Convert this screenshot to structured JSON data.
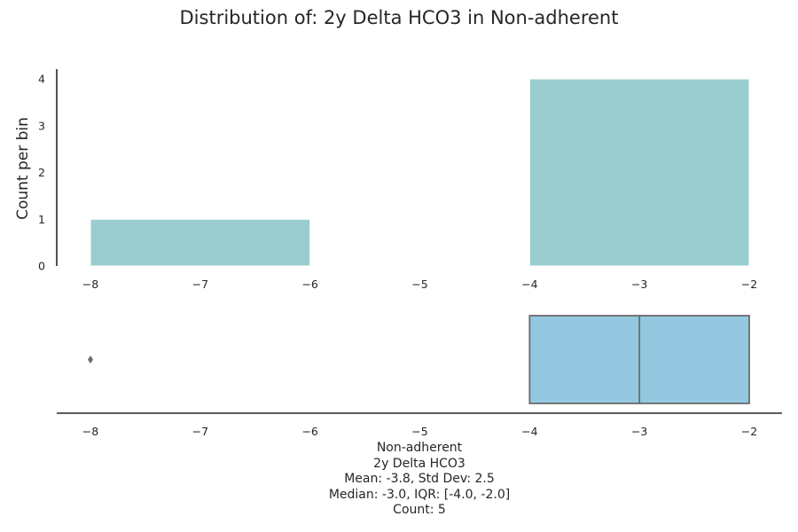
{
  "chart_data": [
    {
      "type": "bar",
      "subtype": "histogram",
      "title": "Distribution of: 2y Delta HCO3 in Non-adherent",
      "ylabel": "Count per bin",
      "bins": [
        {
          "x0": -8,
          "x1": -6,
          "count": 1
        },
        {
          "x0": -6,
          "x1": -4,
          "count": 0
        },
        {
          "x0": -4,
          "x1": -2,
          "count": 4
        }
      ],
      "xlim": [
        -8.3,
        -2
      ],
      "ylim": [
        0,
        4.2
      ],
      "xticks": [
        -8,
        -7,
        -6,
        -5,
        -4,
        -3,
        -2
      ],
      "xtick_labels": [
        "−8",
        "−7",
        "−6",
        "−5",
        "−4",
        "−3",
        "−2"
      ],
      "yticks": [
        0,
        1,
        2,
        3,
        4
      ],
      "ytick_labels": [
        "0",
        "1",
        "2",
        "3",
        "4"
      ],
      "bar_color": "#9bcdcf",
      "grid": false
    },
    {
      "type": "box",
      "group": "Non-adherent",
      "variable": "2y Delta HCO3",
      "q1": -4.0,
      "median": -3.0,
      "q3": -2.0,
      "whisker_low": -4.0,
      "whisker_high": -2.0,
      "outliers": [
        -8
      ],
      "xlim": [
        -8.3,
        -2
      ],
      "xticks": [
        -8,
        -7,
        -6,
        -5,
        -4,
        -3,
        -2
      ],
      "xtick_labels": [
        "−8",
        "−7",
        "−6",
        "−5",
        "−4",
        "−3",
        "−2"
      ],
      "box_color": "#93c8e0",
      "line_color": "#6b6b6b",
      "xlabel_lines": [
        "Non-adherent",
        "2y Delta HCO3",
        "Mean: -3.8, Std Dev: 2.5",
        "Median: -3.0, IQR: [-4.0, -2.0]",
        "Count: 5"
      ]
    }
  ]
}
